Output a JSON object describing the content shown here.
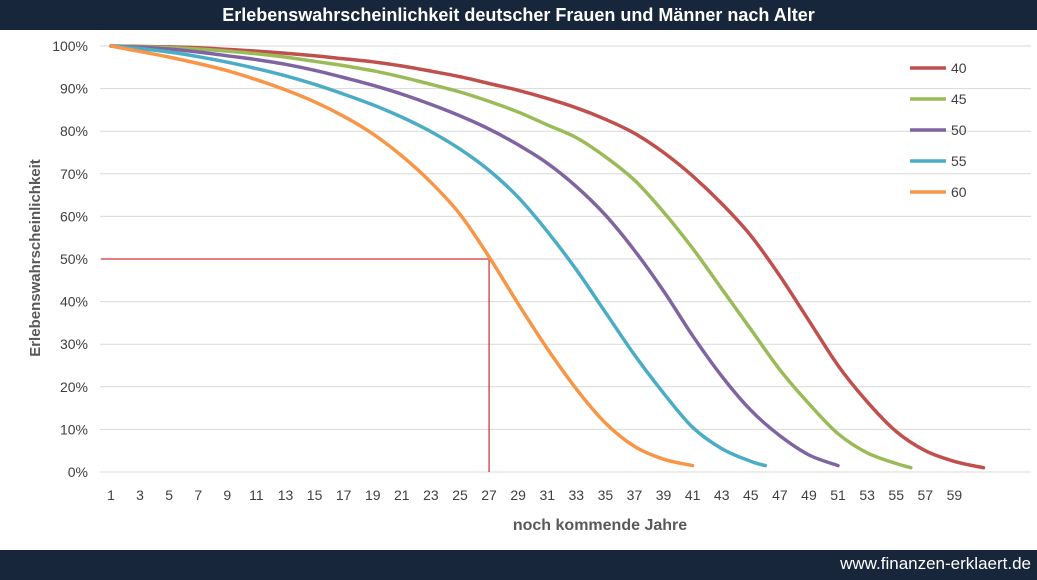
{
  "header": {
    "title": "Erlebenswahrscheinlichkeit deutscher Frauen und Männer nach Alter",
    "background": "#17263a"
  },
  "footer": {
    "text": "www.finanzen-erklaert.de"
  },
  "chart_data": {
    "type": "line",
    "title": "Erlebenswahrscheinlichkeit deutscher Frauen und Männer nach Alter",
    "xlabel": "noch kommende Jahre",
    "ylabel": "Erlebenswahrscheinlichkeit",
    "x_ticks": [
      "1",
      "3",
      "5",
      "7",
      "9",
      "11",
      "13",
      "15",
      "17",
      "19",
      "21",
      "23",
      "25",
      "27",
      "29",
      "31",
      "33",
      "35",
      "37",
      "39",
      "41",
      "43",
      "45",
      "47",
      "49",
      "51",
      "53",
      "55",
      "57",
      "59"
    ],
    "y_ticks": [
      "0%",
      "10%",
      "20%",
      "30%",
      "40%",
      "50%",
      "60%",
      "70%",
      "80%",
      "90%",
      "100%"
    ],
    "xlim": [
      1,
      62
    ],
    "ylim": [
      0,
      100
    ],
    "grid": "horizontal",
    "legend_position": "right",
    "reference_lines": [
      {
        "type": "horizontal",
        "y": 50,
        "x_from": 1,
        "x_to": 27,
        "color": "#c00000"
      },
      {
        "type": "vertical",
        "x": 27,
        "y_from": 0,
        "y_to": 50,
        "color": "#c00000"
      }
    ],
    "series": [
      {
        "name": "40",
        "color": "#c0504d",
        "points": [
          [
            1,
            100
          ],
          [
            3,
            99.9
          ],
          [
            5,
            99.8
          ],
          [
            7,
            99.6
          ],
          [
            9,
            99.2
          ],
          [
            11,
            98.8
          ],
          [
            13,
            98.3
          ],
          [
            15,
            97.7
          ],
          [
            17,
            97
          ],
          [
            19,
            96.3
          ],
          [
            21,
            95.3
          ],
          [
            23,
            94.1
          ],
          [
            25,
            92.8
          ],
          [
            27,
            91.2
          ],
          [
            29,
            89.6
          ],
          [
            31,
            87.7
          ],
          [
            33,
            85.5
          ],
          [
            35,
            82.8
          ],
          [
            37,
            79.5
          ],
          [
            39,
            75
          ],
          [
            41,
            69.5
          ],
          [
            43,
            63
          ],
          [
            45,
            55.5
          ],
          [
            47,
            46
          ],
          [
            49,
            35.5
          ],
          [
            51,
            25
          ],
          [
            53,
            16.5
          ],
          [
            55,
            9.5
          ],
          [
            57,
            5
          ],
          [
            59,
            2.5
          ],
          [
            61,
            1
          ]
        ]
      },
      {
        "name": "45",
        "color": "#9bbb59",
        "points": [
          [
            1,
            100
          ],
          [
            3,
            99.8
          ],
          [
            5,
            99.6
          ],
          [
            7,
            99.3
          ],
          [
            9,
            98.8
          ],
          [
            11,
            98.2
          ],
          [
            13,
            97.4
          ],
          [
            15,
            96.4
          ],
          [
            17,
            95.4
          ],
          [
            19,
            94.2
          ],
          [
            21,
            92.7
          ],
          [
            23,
            91
          ],
          [
            25,
            89.2
          ],
          [
            27,
            87
          ],
          [
            29,
            84.5
          ],
          [
            31,
            81.5
          ],
          [
            33,
            78.5
          ],
          [
            35,
            74
          ],
          [
            37,
            68.5
          ],
          [
            39,
            61
          ],
          [
            41,
            52.5
          ],
          [
            43,
            43
          ],
          [
            45,
            33.5
          ],
          [
            47,
            24
          ],
          [
            49,
            16
          ],
          [
            51,
            9
          ],
          [
            53,
            4.5
          ],
          [
            55,
            2
          ],
          [
            56,
            1
          ]
        ]
      },
      {
        "name": "50",
        "color": "#8064a2",
        "points": [
          [
            1,
            100
          ],
          [
            3,
            99.7
          ],
          [
            5,
            99.3
          ],
          [
            7,
            98.6
          ],
          [
            9,
            97.7
          ],
          [
            11,
            96.8
          ],
          [
            13,
            95.7
          ],
          [
            15,
            94.3
          ],
          [
            17,
            92.6
          ],
          [
            19,
            90.8
          ],
          [
            21,
            88.7
          ],
          [
            23,
            86.3
          ],
          [
            25,
            83.6
          ],
          [
            27,
            80.5
          ],
          [
            29,
            76.8
          ],
          [
            31,
            72.5
          ],
          [
            33,
            67
          ],
          [
            35,
            60.3
          ],
          [
            37,
            52
          ],
          [
            39,
            42.5
          ],
          [
            41,
            32
          ],
          [
            43,
            22.5
          ],
          [
            45,
            14.5
          ],
          [
            47,
            8.5
          ],
          [
            49,
            4
          ],
          [
            51,
            1.5
          ]
        ]
      },
      {
        "name": "55",
        "color": "#4bacc6",
        "points": [
          [
            1,
            100
          ],
          [
            3,
            99.4
          ],
          [
            5,
            98.6
          ],
          [
            7,
            97.5
          ],
          [
            9,
            96.2
          ],
          [
            11,
            94.7
          ],
          [
            13,
            93
          ],
          [
            15,
            91
          ],
          [
            17,
            88.7
          ],
          [
            19,
            86.2
          ],
          [
            21,
            83.3
          ],
          [
            23,
            79.9
          ],
          [
            25,
            75.8
          ],
          [
            27,
            70.8
          ],
          [
            29,
            64.5
          ],
          [
            31,
            56.5
          ],
          [
            33,
            47.5
          ],
          [
            35,
            37.5
          ],
          [
            37,
            27.5
          ],
          [
            39,
            18.5
          ],
          [
            41,
            10.5
          ],
          [
            43,
            5.5
          ],
          [
            45,
            2.5
          ],
          [
            46,
            1.5
          ]
        ]
      },
      {
        "name": "60",
        "color": "#f79646",
        "points": [
          [
            1,
            100
          ],
          [
            3,
            98.7
          ],
          [
            5,
            97.4
          ],
          [
            7,
            95.9
          ],
          [
            9,
            94.2
          ],
          [
            11,
            92.1
          ],
          [
            13,
            89.7
          ],
          [
            15,
            86.9
          ],
          [
            17,
            83.5
          ],
          [
            19,
            79.4
          ],
          [
            21,
            74.2
          ],
          [
            23,
            68
          ],
          [
            25,
            60.5
          ],
          [
            27,
            50.5
          ],
          [
            29,
            39.5
          ],
          [
            31,
            29
          ],
          [
            33,
            19.5
          ],
          [
            35,
            11.5
          ],
          [
            37,
            6
          ],
          [
            39,
            3
          ],
          [
            41,
            1.5
          ]
        ]
      }
    ]
  }
}
